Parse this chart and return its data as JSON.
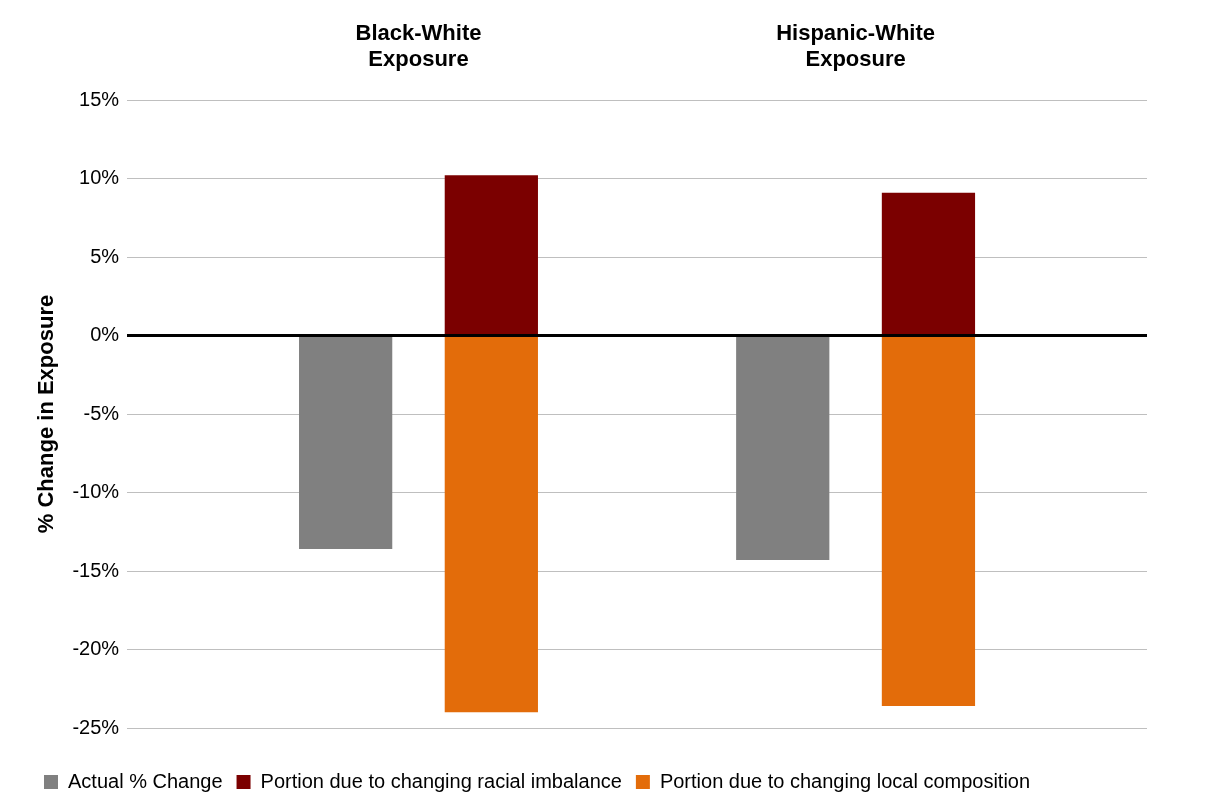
{
  "chart_data": {
    "type": "bar",
    "stacked": true,
    "categories": [
      null,
      null,
      null,
      null,
      null,
      null,
      null
    ],
    "ylabel": "% Change in Exposure",
    "annotations": [
      "Black-White Exposure",
      "Hispanic-White Exposure"
    ],
    "series": [
      {
        "name": "Actual % Change",
        "color": "#808080",
        "values": [
          null,
          -13.6,
          null,
          null,
          -14.3,
          null,
          null
        ]
      },
      {
        "name": "Portion due to changing racial imbalance",
        "color": "#7b0000",
        "values": [
          null,
          null,
          10.2,
          null,
          null,
          9.1,
          null
        ]
      },
      {
        "name": "Portion due to changing local composition",
        "color": "#e36c0a",
        "values": [
          null,
          null,
          -24.0,
          null,
          null,
          -23.6,
          null
        ]
      }
    ],
    "ylim": [
      -25,
      15
    ],
    "yticks": [
      {
        "value": -25,
        "label": "-25%"
      },
      {
        "value": -20,
        "label": "-20%"
      },
      {
        "value": -15,
        "label": "-15%"
      },
      {
        "value": -10,
        "label": "-10%"
      },
      {
        "value": -5,
        "label": "-5%"
      },
      {
        "value": 0,
        "label": "0%"
      },
      {
        "value": 5,
        "label": "5%"
      },
      {
        "value": 10,
        "label": "10%"
      },
      {
        "value": 15,
        "label": "15%"
      }
    ],
    "grid": "y",
    "legend": "bottom"
  }
}
